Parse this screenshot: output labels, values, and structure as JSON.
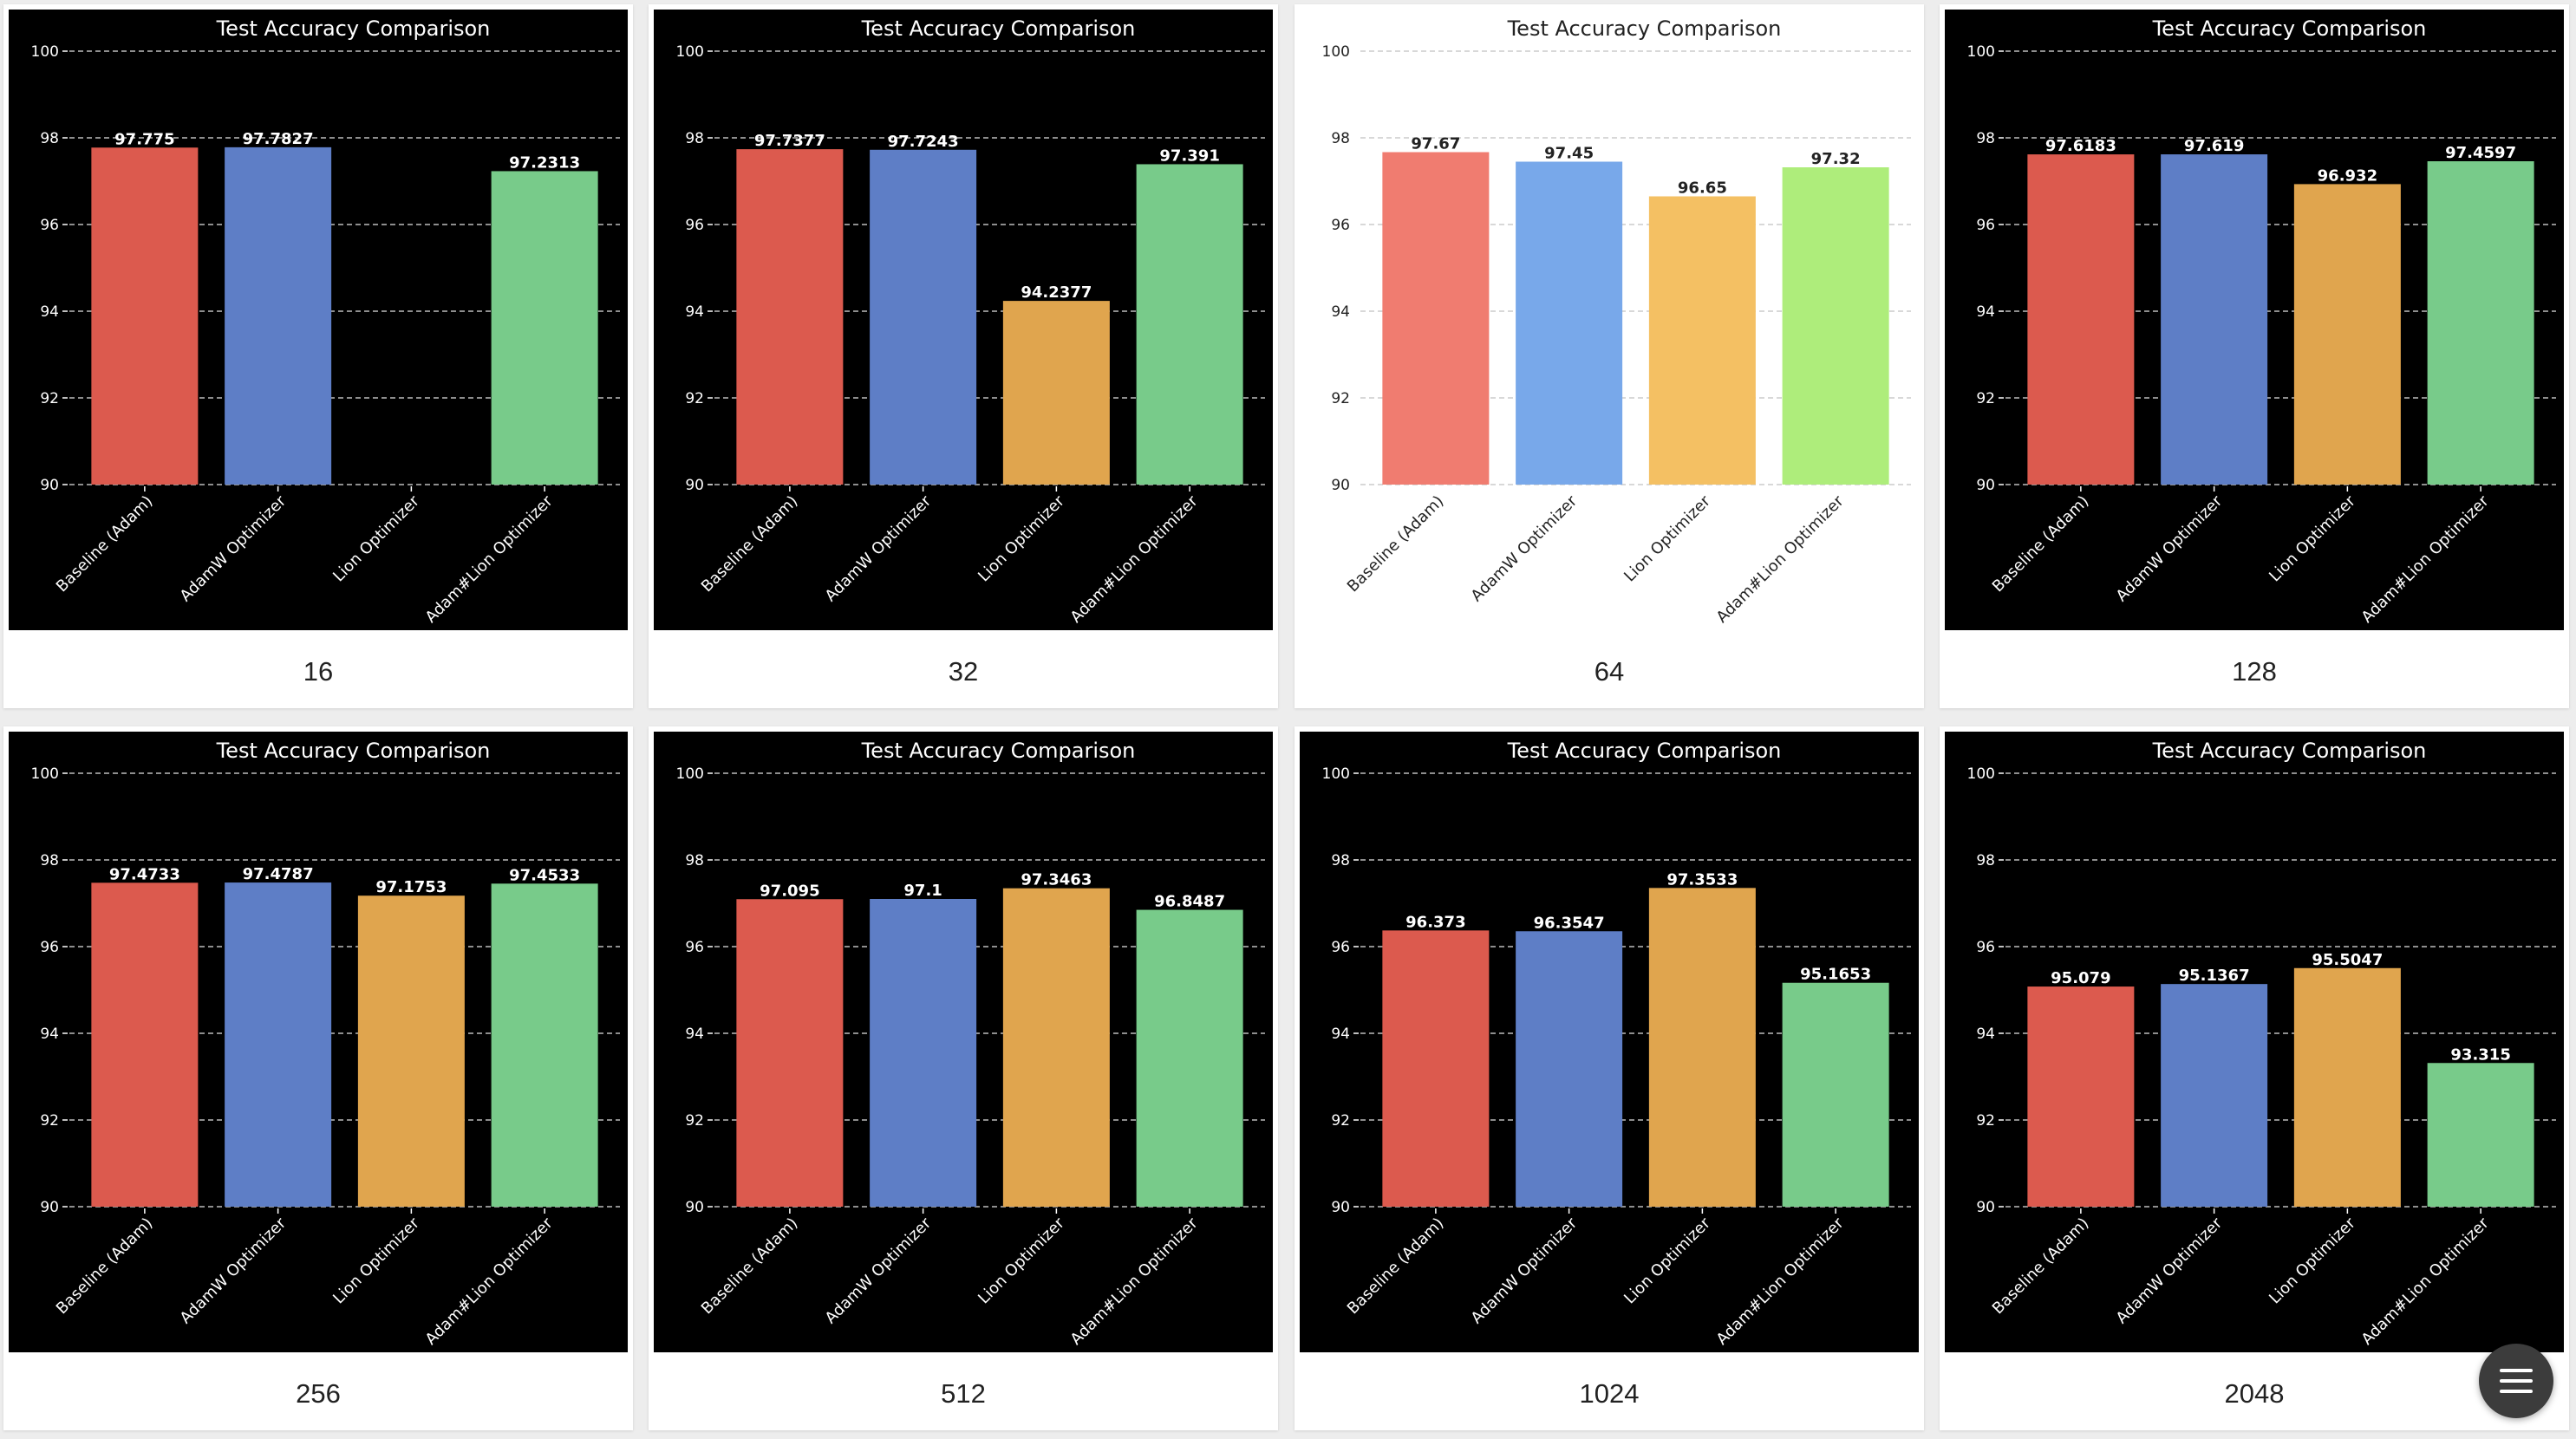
{
  "charts": [
    {
      "caption": "16",
      "theme": "dark"
    },
    {
      "caption": "32",
      "theme": "dark"
    },
    {
      "caption": "64",
      "theme": "light"
    },
    {
      "caption": "128",
      "theme": "dark"
    },
    {
      "caption": "256",
      "theme": "dark"
    },
    {
      "caption": "512",
      "theme": "dark"
    },
    {
      "caption": "1024",
      "theme": "dark"
    },
    {
      "caption": "2048",
      "theme": "dark"
    }
  ],
  "chart_data": [
    {
      "type": "bar",
      "title": "Test Accuracy Comparison",
      "categories": [
        "Baseline (Adam)",
        "AdamW Optimizer",
        "Lion Optimizer",
        "Adam#Lion Optimizer"
      ],
      "values": [
        97.775,
        97.7827,
        null,
        97.2313
      ],
      "labels": [
        "97.775",
        "97.7827",
        "",
        "97.2313"
      ],
      "ylim": [
        90,
        100
      ],
      "yticks": [
        90,
        92,
        94,
        96,
        98,
        100
      ],
      "grid": true
    },
    {
      "type": "bar",
      "title": "Test Accuracy Comparison",
      "categories": [
        "Baseline (Adam)",
        "AdamW Optimizer",
        "Lion Optimizer",
        "Adam#Lion Optimizer"
      ],
      "values": [
        97.7377,
        97.7243,
        94.2377,
        97.391
      ],
      "labels": [
        "97.7377",
        "97.7243",
        "94.2377",
        "97.391"
      ],
      "ylim": [
        90,
        100
      ],
      "yticks": [
        90,
        92,
        94,
        96,
        98,
        100
      ],
      "grid": true
    },
    {
      "type": "bar",
      "title": "Test Accuracy Comparison",
      "categories": [
        "Baseline (Adam)",
        "AdamW Optimizer",
        "Lion Optimizer",
        "Adam#Lion Optimizer"
      ],
      "values": [
        97.67,
        97.45,
        96.65,
        97.32
      ],
      "labels": [
        "97.67",
        "97.45",
        "96.65",
        "97.32"
      ],
      "ylim": [
        90,
        100
      ],
      "yticks": [
        90,
        92,
        94,
        96,
        98,
        100
      ],
      "grid": true
    },
    {
      "type": "bar",
      "title": "Test Accuracy Comparison",
      "categories": [
        "Baseline (Adam)",
        "AdamW Optimizer",
        "Lion Optimizer",
        "Adam#Lion Optimizer"
      ],
      "values": [
        97.6183,
        97.619,
        96.932,
        97.4597
      ],
      "labels": [
        "97.6183",
        "97.619",
        "96.932",
        "97.4597"
      ],
      "ylim": [
        90,
        100
      ],
      "yticks": [
        90,
        92,
        94,
        96,
        98,
        100
      ],
      "grid": true
    },
    {
      "type": "bar",
      "title": "Test Accuracy Comparison",
      "categories": [
        "Baseline (Adam)",
        "AdamW Optimizer",
        "Lion Optimizer",
        "Adam#Lion Optimizer"
      ],
      "values": [
        97.4733,
        97.4787,
        97.1753,
        97.4533
      ],
      "labels": [
        "97.4733",
        "97.4787",
        "97.1753",
        "97.4533"
      ],
      "ylim": [
        90,
        100
      ],
      "yticks": [
        90,
        92,
        94,
        96,
        98,
        100
      ],
      "grid": true
    },
    {
      "type": "bar",
      "title": "Test Accuracy Comparison",
      "categories": [
        "Baseline (Adam)",
        "AdamW Optimizer",
        "Lion Optimizer",
        "Adam#Lion Optimizer"
      ],
      "values": [
        97.095,
        97.1,
        97.3463,
        96.8487
      ],
      "labels": [
        "97.095",
        "97.1",
        "97.3463",
        "96.8487"
      ],
      "ylim": [
        90,
        100
      ],
      "yticks": [
        90,
        92,
        94,
        96,
        98,
        100
      ],
      "grid": true
    },
    {
      "type": "bar",
      "title": "Test Accuracy Comparison",
      "categories": [
        "Baseline (Adam)",
        "AdamW Optimizer",
        "Lion Optimizer",
        "Adam#Lion Optimizer"
      ],
      "values": [
        96.373,
        96.3547,
        97.3533,
        95.1653
      ],
      "labels": [
        "96.373",
        "96.3547",
        "97.3533",
        "95.1653"
      ],
      "ylim": [
        90,
        100
      ],
      "yticks": [
        90,
        92,
        94,
        96,
        98,
        100
      ],
      "grid": true
    },
    {
      "type": "bar",
      "title": "Test Accuracy Comparison",
      "categories": [
        "Baseline (Adam)",
        "AdamW Optimizer",
        "Lion Optimizer",
        "Adam#Lion Optimizer"
      ],
      "values": [
        95.079,
        95.1367,
        95.5047,
        93.315
      ],
      "labels": [
        "95.079",
        "95.1367",
        "95.5047",
        "93.315"
      ],
      "ylim": [
        90,
        100
      ],
      "yticks": [
        90,
        92,
        94,
        96,
        98,
        100
      ],
      "grid": true
    }
  ],
  "colors": {
    "dark_bars": [
      "#dc5a4e",
      "#5e7ec6",
      "#e0a54e",
      "#78cb8a"
    ],
    "light_bars": [
      "#f07c70",
      "#78a8ea",
      "#f4c063",
      "#aeed7b"
    ]
  },
  "menu_button": {
    "icon": "menu-icon"
  }
}
